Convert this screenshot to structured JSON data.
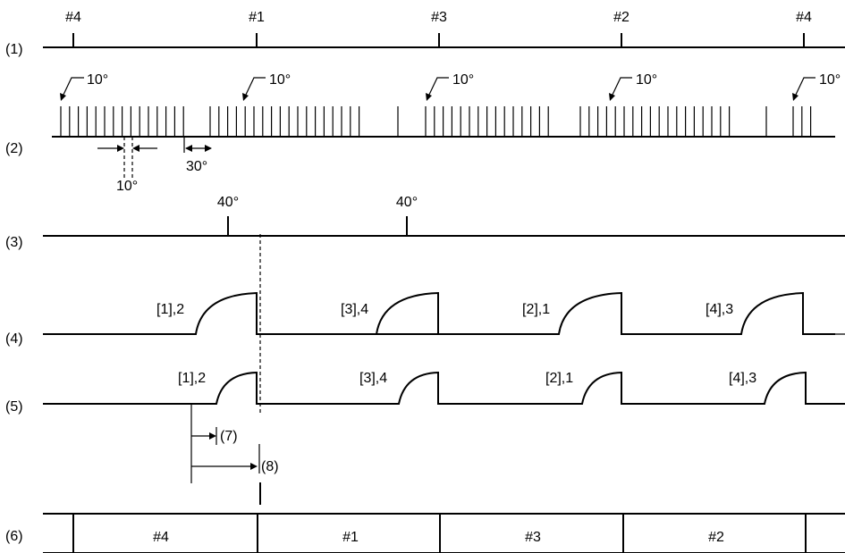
{
  "row_labels": [
    "(1)",
    "(2)",
    "(3)",
    "(4)",
    "(5)",
    "(6)"
  ],
  "row1_cylinders": [
    "#4",
    "#1",
    "#3",
    "#2",
    "#4"
  ],
  "row2": {
    "tooth_angle_labels": [
      "10°",
      "10°",
      "10°",
      "10°",
      "10°"
    ],
    "pitch_label": "10°",
    "gap_label": "30°"
  },
  "row3_labels": [
    "40°",
    "40°"
  ],
  "row4_labels": [
    "[1],2",
    "[3],4",
    "[2],1",
    "[4],3"
  ],
  "row5_labels": [
    "[1],2",
    "[3],4",
    "[2],1",
    "[4],3"
  ],
  "marker_labels": [
    "(7)",
    "(8)"
  ],
  "row6_cylinders": [
    "#4",
    "#1",
    "#3",
    "#2"
  ]
}
